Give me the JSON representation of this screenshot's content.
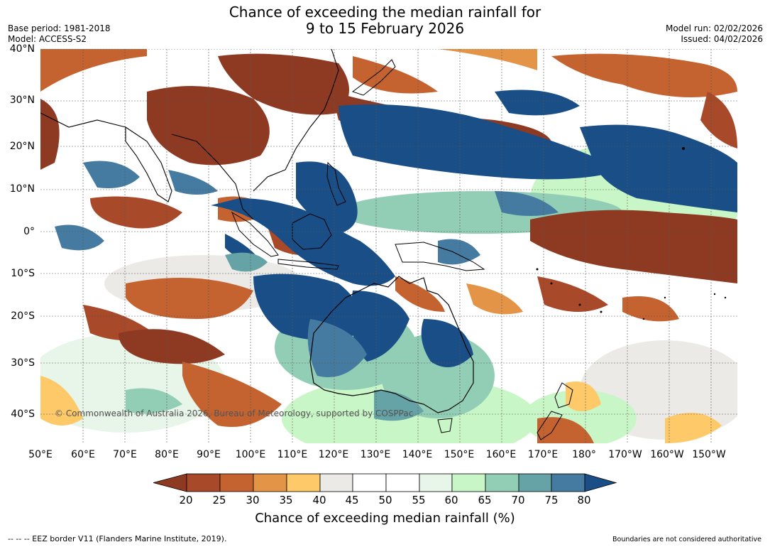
{
  "title_line1": "Chance of exceeding the median rainfall for",
  "title_line2": "9 to 15 February 2026",
  "header_left": {
    "base_period": "Base period: 1981-2018",
    "model": "Model: ACCESS-S2"
  },
  "header_right": {
    "model_run": "Model run: 02/02/2026",
    "issued": "Issued: 04/02/2026"
  },
  "lat_labels": [
    "40°N",
    "30°N",
    "20°N",
    "10°N",
    "0°",
    "10°S",
    "20°S",
    "30°S",
    "40°S"
  ],
  "lon_labels": [
    "50°E",
    "60°E",
    "70°E",
    "80°E",
    "90°E",
    "100°E",
    "110°E",
    "120°E",
    "130°E",
    "140°E",
    "150°E",
    "160°E",
    "170°E",
    "180°",
    "170°W",
    "160°W",
    "150°W"
  ],
  "copyright": "© Commonwealth of Australia 2026, Bureau of Meteorology, supported by COSPPac",
  "colorbar": {
    "ticks": [
      "20",
      "25",
      "30",
      "35",
      "40",
      "45",
      "50",
      "55",
      "60",
      "65",
      "70",
      "75",
      "80"
    ],
    "colors": [
      "#8e3a23",
      "#a8492a",
      "#c56330",
      "#e39446",
      "#fdc969",
      "#ebeae7",
      "#ffffff",
      "#ffffff",
      "#e8f5e9",
      "#c9f6c6",
      "#92cdb5",
      "#66a3a6",
      "#467ba1",
      "#1a4e86"
    ],
    "title": "Chance of exceeding median rainfall (%)"
  },
  "footer_left": "-- -- -- EEZ border V11 (Flanders Marine Institute, 2019).",
  "footer_right": "Boundaries are not considered authoritative"
}
